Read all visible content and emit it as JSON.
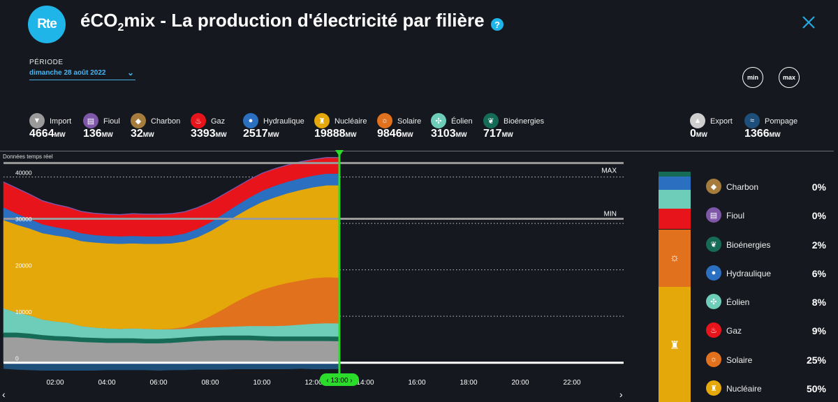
{
  "header": {
    "logo_text": "Rte",
    "title_pre": "éCO",
    "title_sub": "2",
    "title_post": "mix - La production d'électricité par filière",
    "help_label": "?"
  },
  "period": {
    "label": "PÉRIODE",
    "value": "dimanche 28 août 2022"
  },
  "zoom": {
    "min_label": "min",
    "max_label": "max"
  },
  "unit": "MW",
  "sources": [
    {
      "id": "import",
      "label": "Import",
      "value": "4664",
      "color": "#9a9a9a",
      "icon": "chevron-down-icon"
    },
    {
      "id": "fioul",
      "label": "Fioul",
      "value": "136",
      "color": "#7e57a8",
      "icon": "oil-barrel-icon"
    },
    {
      "id": "charbon",
      "label": "Charbon",
      "value": "32",
      "color": "#a67c3d",
      "icon": "coal-icon"
    },
    {
      "id": "gaz",
      "label": "Gaz",
      "value": "3393",
      "color": "#e8141b",
      "icon": "flame-icon"
    },
    {
      "id": "hydraulique",
      "label": "Hydraulique",
      "value": "2517",
      "color": "#2a6fc0",
      "icon": "water-drop-icon"
    },
    {
      "id": "nucleaire",
      "label": "Nucléaire",
      "value": "19888",
      "color": "#e5a80a",
      "icon": "nuclear-plant-icon"
    },
    {
      "id": "solaire",
      "label": "Solaire",
      "value": "9846",
      "color": "#e2711d",
      "icon": "sun-icon"
    },
    {
      "id": "eolien",
      "label": "Éolien",
      "value": "3103",
      "color": "#6ecdb9",
      "icon": "wind-turbine-icon"
    },
    {
      "id": "bioenergies",
      "label": "Bioénergies",
      "value": "717",
      "color": "#166b57",
      "icon": "leaf-icon"
    }
  ],
  "exchanges": [
    {
      "id": "export",
      "label": "Export",
      "value": "0",
      "color": "#cfcfcf",
      "icon": "chevron-up-icon"
    },
    {
      "id": "pompage",
      "label": "Pompage",
      "value": "1366",
      "color": "#1e4f7a",
      "icon": "waves-icon"
    }
  ],
  "realtime_label": "Données temps réel",
  "cursor_label": "13:00",
  "legend": [
    {
      "label": "Charbon",
      "pct": "0%",
      "color": "#a67c3d",
      "icon": "coal-icon"
    },
    {
      "label": "Fioul",
      "pct": "0%",
      "color": "#7e57a8",
      "icon": "oil-barrel-icon"
    },
    {
      "label": "Bioénergies",
      "pct": "2%",
      "color": "#166b57",
      "icon": "leaf-icon"
    },
    {
      "label": "Hydraulique",
      "pct": "6%",
      "color": "#2a6fc0",
      "icon": "water-drop-icon"
    },
    {
      "label": "Éolien",
      "pct": "8%",
      "color": "#6ecdb9",
      "icon": "wind-turbine-icon"
    },
    {
      "label": "Gaz",
      "pct": "9%",
      "color": "#e8141b",
      "icon": "flame-icon"
    },
    {
      "label": "Solaire",
      "pct": "25%",
      "color": "#e2711d",
      "icon": "sun-icon"
    },
    {
      "label": "Nucléaire",
      "pct": "50%",
      "color": "#e5a80a",
      "icon": "nuclear-plant-icon"
    }
  ],
  "chart_data": {
    "type": "area",
    "x_ticks": [
      "02:00",
      "04:00",
      "06:00",
      "08:00",
      "10:00",
      "12:00",
      "14:00",
      "16:00",
      "18:00",
      "20:00",
      "22:00"
    ],
    "x_range": [
      0,
      24
    ],
    "y_ticks": [
      0,
      10000,
      20000,
      30000,
      40000
    ],
    "ylim": [
      -2000,
      44000
    ],
    "max_label": "MAX",
    "min_label": "MIN",
    "max_value": 43000,
    "min_value": 31000,
    "cursor_time": 13,
    "x": [
      0,
      0.5,
      1,
      1.5,
      2,
      2.5,
      3,
      3.5,
      4,
      4.5,
      5,
      5.5,
      6,
      6.5,
      7,
      7.5,
      8,
      8.5,
      9,
      9.5,
      10,
      10.5,
      11,
      11.5,
      12,
      12.5,
      13
    ],
    "series": [
      {
        "name": "Import",
        "color": "#9e9e9e",
        "values": [
          5500,
          5500,
          5300,
          5000,
          4800,
          4700,
          4500,
          4400,
          4300,
          4300,
          4300,
          4200,
          4200,
          4300,
          4500,
          4700,
          4800,
          4900,
          4900,
          4900,
          4800,
          4700,
          4700,
          4700,
          4700,
          4700,
          4664
        ]
      },
      {
        "name": "Bioénergies",
        "color": "#166b57",
        "values": [
          750,
          750,
          740,
          730,
          720,
          720,
          720,
          720,
          720,
          720,
          720,
          720,
          720,
          720,
          720,
          720,
          720,
          720,
          720,
          720,
          720,
          720,
          720,
          720,
          720,
          720,
          717
        ]
      },
      {
        "name": "Éolien",
        "color": "#6ecdb9",
        "values": [
          5500,
          4600,
          4200,
          3600,
          3400,
          3200,
          2700,
          2500,
          2400,
          2300,
          2400,
          2400,
          2300,
          2200,
          2100,
          2100,
          2100,
          2100,
          2200,
          2300,
          2400,
          2500,
          2600,
          2800,
          3000,
          3100,
          3103
        ]
      },
      {
        "name": "Solaire",
        "color": "#e2711d",
        "values": [
          0,
          0,
          0,
          0,
          0,
          0,
          0,
          0,
          0,
          0,
          0,
          0,
          0,
          100,
          400,
          1200,
          2400,
          3800,
          5300,
          6600,
          7800,
          8600,
          9200,
          9500,
          9800,
          9900,
          9846
        ]
      },
      {
        "name": "Nucléaire",
        "color": "#e5a80a",
        "values": [
          19000,
          18900,
          18700,
          18600,
          18500,
          18400,
          18300,
          18300,
          18300,
          18300,
          18300,
          18300,
          18400,
          18400,
          18400,
          18300,
          18300,
          18400,
          18500,
          18700,
          18900,
          19100,
          19300,
          19500,
          19600,
          19800,
          19888
        ]
      },
      {
        "name": "Hydraulique",
        "color": "#2a6fc0",
        "values": [
          2700,
          2400,
          2100,
          1900,
          1800,
          1700,
          1700,
          1600,
          1600,
          1600,
          1600,
          1600,
          1600,
          1600,
          1700,
          1800,
          1900,
          2100,
          2200,
          2300,
          2400,
          2500,
          2500,
          2500,
          2500,
          2500,
          2517
        ]
      },
      {
        "name": "Gaz",
        "color": "#e8141b",
        "values": [
          5400,
          5400,
          5200,
          5000,
          4800,
          4700,
          4600,
          4600,
          4600,
          4600,
          4700,
          4700,
          4700,
          4700,
          4600,
          4500,
          4300,
          4100,
          3900,
          3800,
          3700,
          3600,
          3500,
          3500,
          3400,
          3400,
          3393
        ]
      },
      {
        "name": "Fioul",
        "color": "#7e57a8",
        "values": [
          150,
          150,
          150,
          150,
          150,
          150,
          140,
          140,
          140,
          140,
          140,
          140,
          140,
          140,
          140,
          140,
          140,
          140,
          140,
          140,
          140,
          140,
          140,
          140,
          140,
          140,
          136
        ]
      }
    ],
    "pompage": {
      "name": "Pompage",
      "color": "#1e4f7a",
      "values": [
        1300,
        1500,
        1600,
        1700,
        1700,
        1700,
        1700,
        1700,
        1600,
        1600,
        1600,
        1600,
        1700,
        1600,
        1600,
        1500,
        1500,
        1500,
        1400,
        1400,
        1400,
        1400,
        1400,
        1300,
        1400,
        1400,
        1366
      ]
    }
  },
  "mix_bar": [
    {
      "label": "Nucléaire",
      "pct": 50,
      "color": "#e5a80a",
      "icon": "nuclear-plant-icon"
    },
    {
      "label": "Solaire",
      "pct": 25,
      "color": "#e2711d",
      "icon": "sun-icon"
    },
    {
      "label": "Gaz",
      "pct": 9,
      "color": "#e8141b",
      "icon": "flame-icon"
    },
    {
      "label": "Éolien",
      "pct": 8,
      "color": "#6ecdb9",
      "icon": "wind-turbine-icon"
    },
    {
      "label": "Hydraulique",
      "pct": 6,
      "color": "#2a6fc0",
      "icon": "water-drop-icon"
    },
    {
      "label": "Bioénergies",
      "pct": 2,
      "color": "#166b57",
      "icon": "leaf-icon"
    }
  ]
}
